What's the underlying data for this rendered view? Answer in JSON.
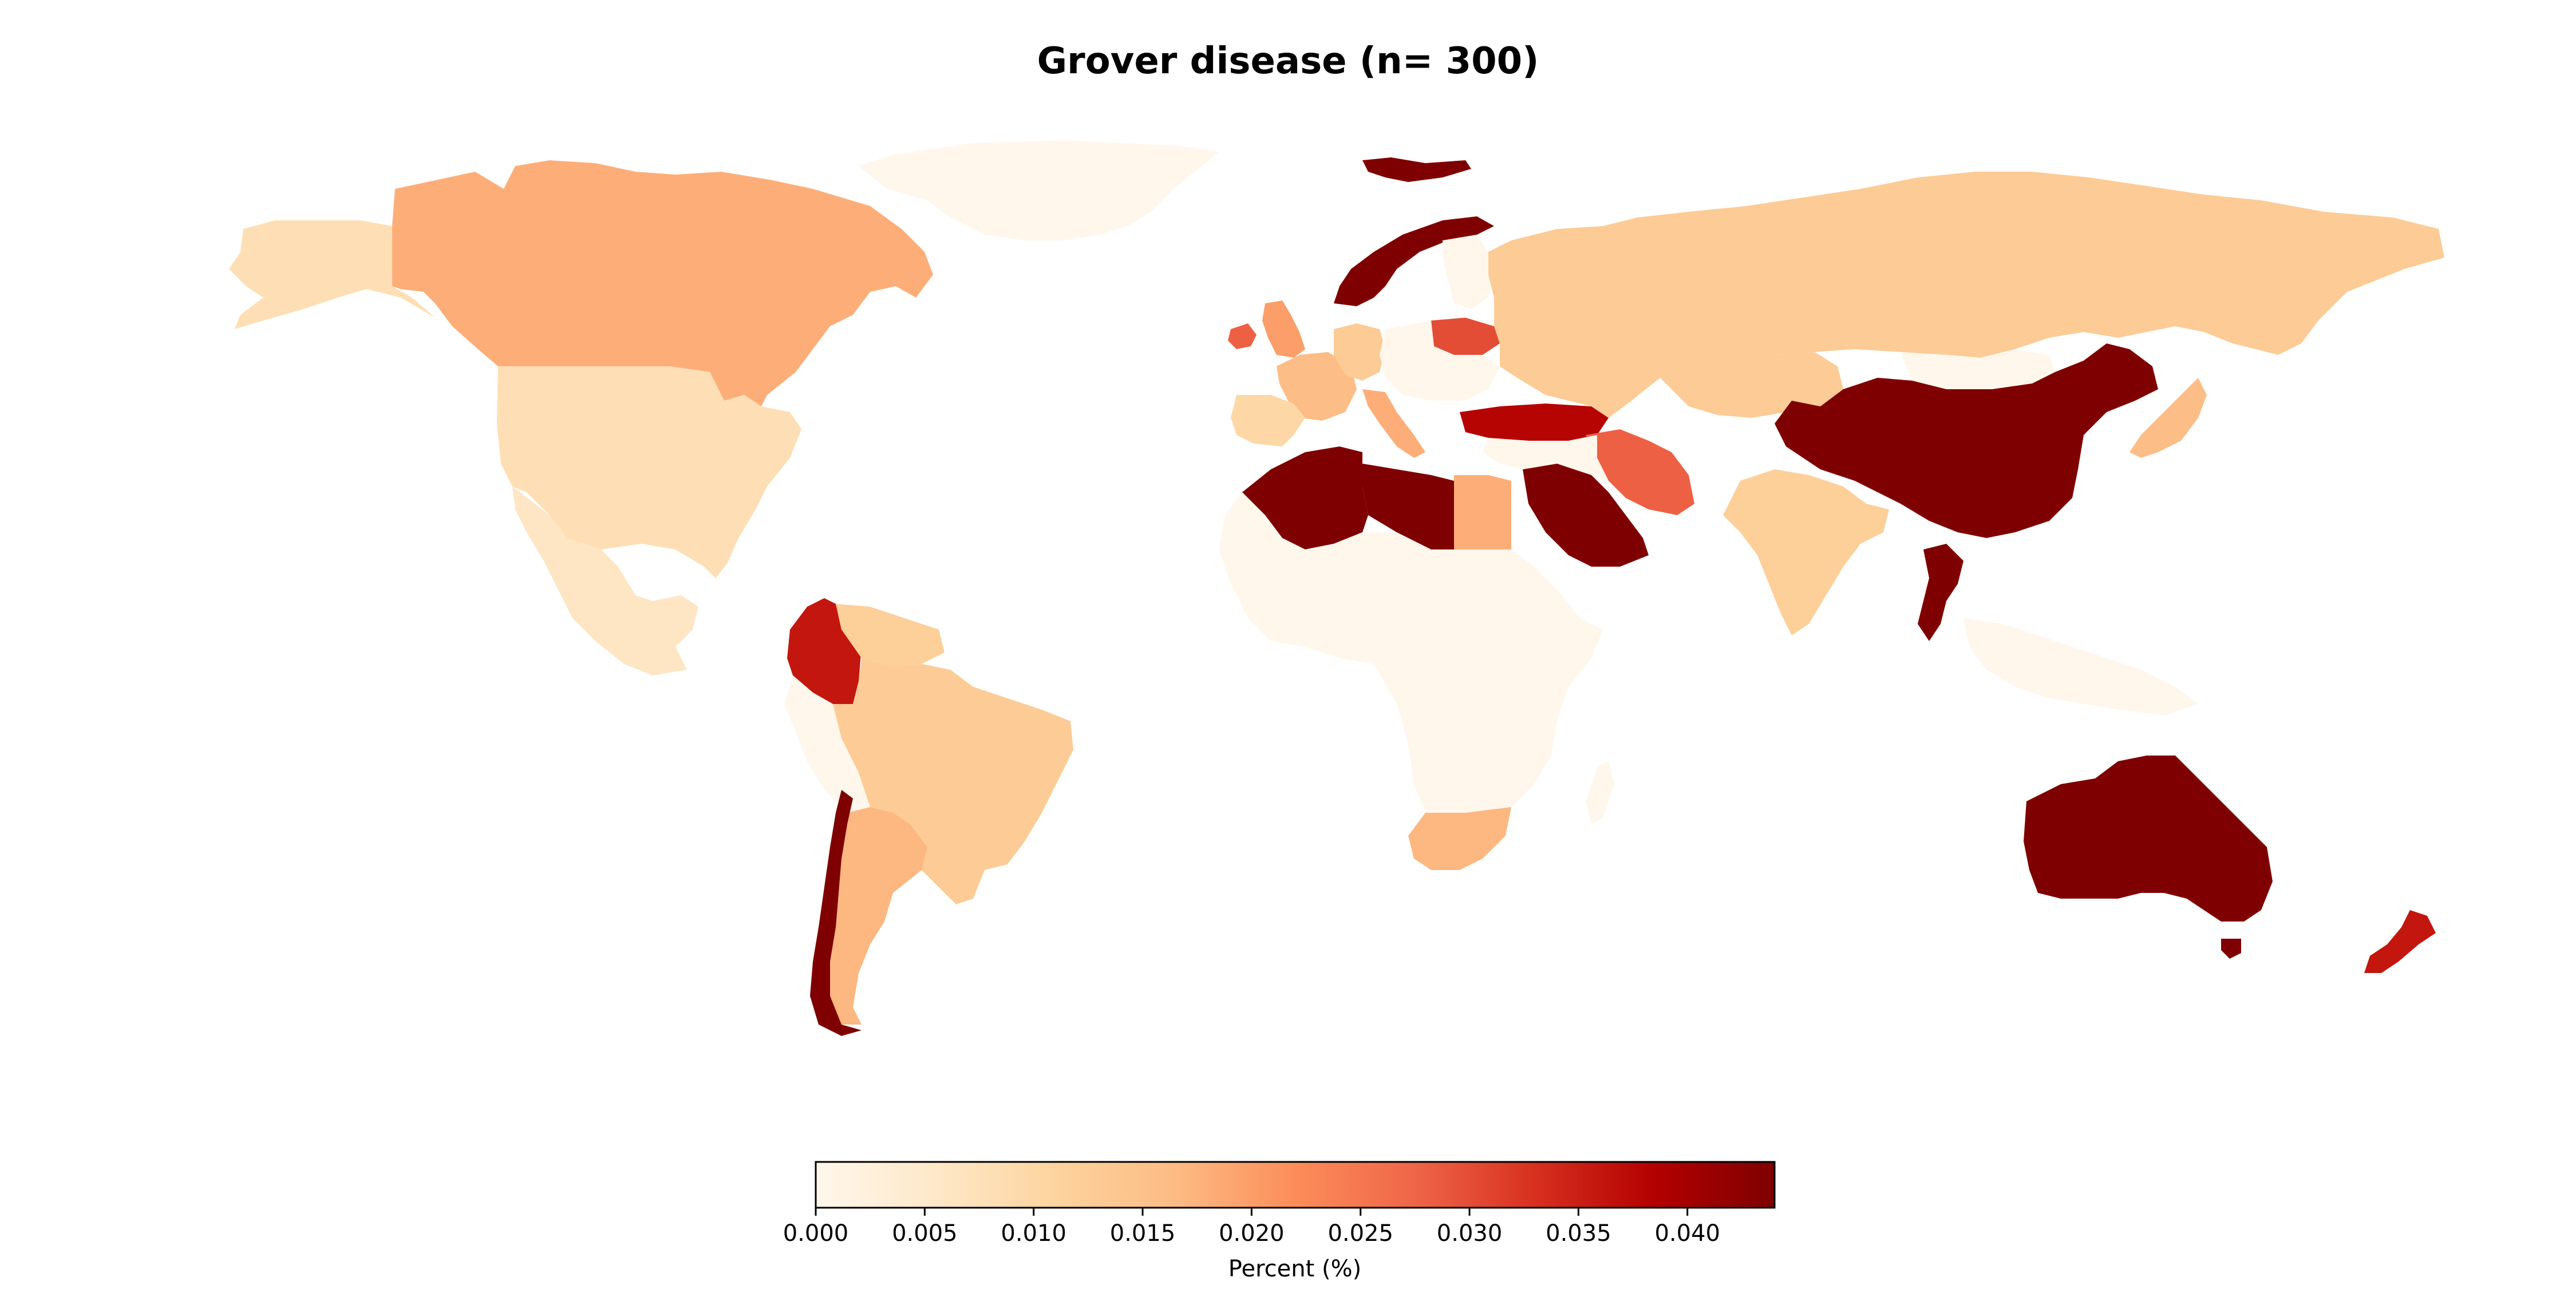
{
  "title": "Grover disease (n= 300)",
  "colorbar": {
    "label": "Percent (%)",
    "min": 0.0,
    "max": 0.044,
    "ticks": [
      "0.000",
      "0.005",
      "0.010",
      "0.015",
      "0.020",
      "0.025",
      "0.030",
      "0.035",
      "0.040"
    ],
    "tick_values": [
      0.0,
      0.005,
      0.01,
      0.015,
      0.02,
      0.025,
      0.03,
      0.035,
      0.04
    ],
    "colormap": "OrRd",
    "stops": [
      "#fff7ec",
      "#fee8c8",
      "#fdd49e",
      "#fdbb84",
      "#fc8d59",
      "#ef6548",
      "#d7301f",
      "#b30000",
      "#7f0000"
    ]
  },
  "chart_data": {
    "type": "choropleth",
    "value_unit": "Percent (%)",
    "regions": [
      {
        "name": "Canada",
        "value": 0.018
      },
      {
        "name": "Greenland",
        "value": 0.0
      },
      {
        "name": "Alaska",
        "value": 0.008
      },
      {
        "name": "USA",
        "value": 0.008
      },
      {
        "name": "Mexico",
        "value": 0.006
      },
      {
        "name": "Colombia",
        "value": 0.036
      },
      {
        "name": "Brazil",
        "value": 0.013
      },
      {
        "name": "Argentina",
        "value": 0.017
      },
      {
        "name": "Chile",
        "value": 0.044
      },
      {
        "name": "Peru",
        "value": 0.0
      },
      {
        "name": "Venezuela",
        "value": 0.012
      },
      {
        "name": "Norway",
        "value": 0.044
      },
      {
        "name": "Finland",
        "value": 0.0
      },
      {
        "name": "Russia",
        "value": 0.013
      },
      {
        "name": "China",
        "value": 0.044
      },
      {
        "name": "Mongolia",
        "value": 0.0
      },
      {
        "name": "Kazakhstan",
        "value": 0.013
      },
      {
        "name": "India",
        "value": 0.012
      },
      {
        "name": "Japan",
        "value": 0.016
      },
      {
        "name": "Australia",
        "value": 0.044
      },
      {
        "name": "New Zealand",
        "value": 0.036
      },
      {
        "name": "Algeria",
        "value": 0.044
      },
      {
        "name": "Libya",
        "value": 0.044
      },
      {
        "name": "Egypt",
        "value": 0.018
      },
      {
        "name": "Saudi Arabia",
        "value": 0.044
      },
      {
        "name": "Iran",
        "value": 0.028
      },
      {
        "name": "Turkey",
        "value": 0.038
      },
      {
        "name": "Thailand",
        "value": 0.044
      },
      {
        "name": "South Africa",
        "value": 0.017
      },
      {
        "name": "Africa (other)",
        "value": 0.0
      },
      {
        "name": "Spain",
        "value": 0.01
      },
      {
        "name": "France",
        "value": 0.016
      },
      {
        "name": "UK",
        "value": 0.02
      },
      {
        "name": "Ireland",
        "value": 0.028
      },
      {
        "name": "Germany",
        "value": 0.013
      },
      {
        "name": "Poland",
        "value": 0.03
      },
      {
        "name": "Italy",
        "value": 0.018
      },
      {
        "name": "Svalbard",
        "value": 0.044
      }
    ]
  }
}
